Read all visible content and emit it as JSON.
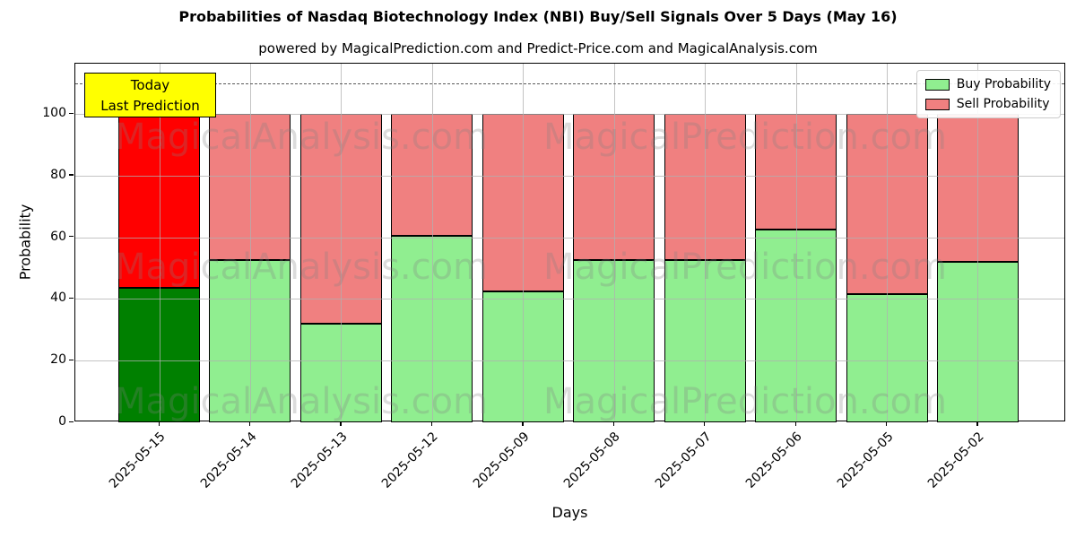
{
  "title": "Probabilities of Nasdaq Biotechnology Index (NBI) Buy/Sell Signals Over 5 Days (May 16)",
  "subtitle": "powered by MagicalPrediction.com and Predict-Price.com and MagicalAnalysis.com",
  "annotation": {
    "line1": "Today",
    "line2": "Last Prediction",
    "bg_color": "#ffff00"
  },
  "legend": [
    {
      "label": "Buy Probability",
      "color": "#90ee90"
    },
    {
      "label": "Sell Probability",
      "color": "#f08080"
    }
  ],
  "watermarks": {
    "left": "MagicalAnalysis.com",
    "right": "MagicalPrediction.com"
  },
  "chart_data": {
    "type": "bar",
    "stacked": true,
    "title": "Probabilities of Nasdaq Biotechnology Index (NBI) Buy/Sell Signals Over 5 Days (May 16)",
    "xlabel": "Days",
    "ylabel": "Probability",
    "categories": [
      "2025-05-15",
      "2025-05-14",
      "2025-05-13",
      "2025-05-12",
      "2025-05-09",
      "2025-05-08",
      "2025-05-07",
      "2025-05-06",
      "2025-05-05",
      "2025-05-02"
    ],
    "series": [
      {
        "name": "Buy Probability",
        "values": [
          43.5,
          52.5,
          32,
          60.5,
          42.5,
          52.5,
          52.5,
          62.5,
          41.5,
          52
        ]
      },
      {
        "name": "Sell Probability",
        "values": [
          56.5,
          47.5,
          68,
          39.5,
          57.5,
          47.5,
          47.5,
          37.5,
          58.5,
          48
        ]
      }
    ],
    "bar_totals": [
      100,
      100,
      100,
      100,
      100,
      100,
      100,
      100,
      100,
      100
    ],
    "highlight_index": 0,
    "colors": {
      "buy": "#90ee90",
      "sell": "#f08080",
      "buy_highlight": "#008000",
      "sell_highlight": "#ff0000"
    },
    "yticks": [
      0,
      20,
      40,
      60,
      80,
      100
    ],
    "ylim": [
      0,
      116.3
    ],
    "dashed_line_y": 110,
    "grid": true,
    "legend_position": "upper right"
  }
}
